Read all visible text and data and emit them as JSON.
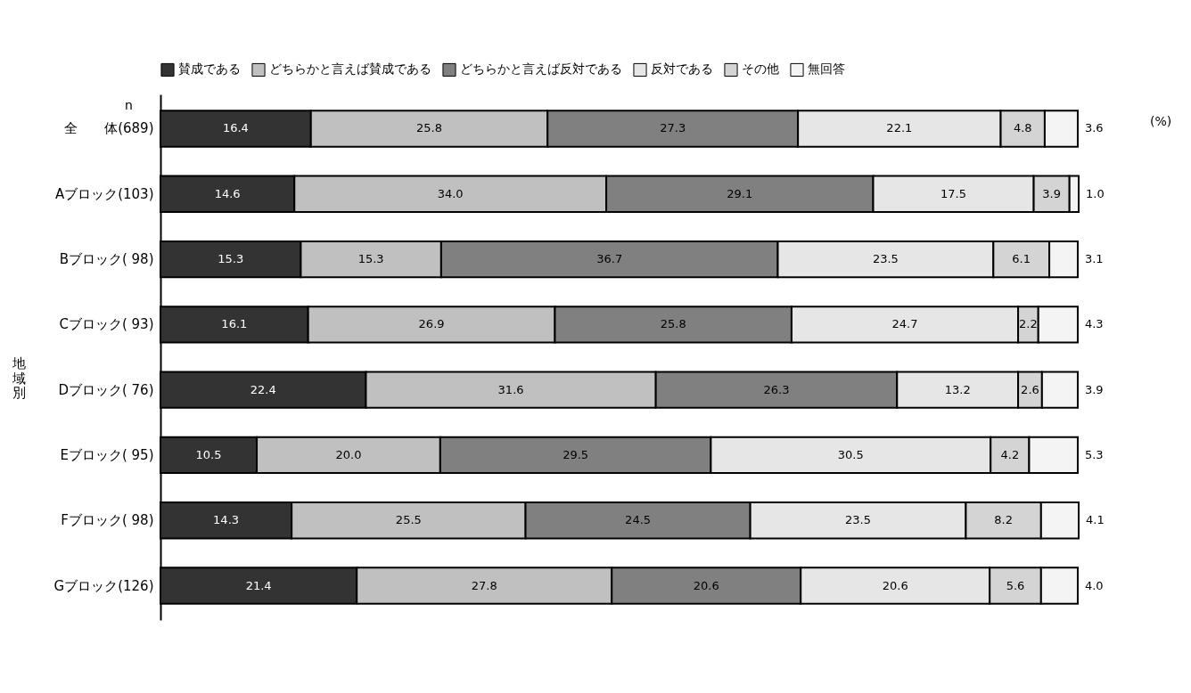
{
  "chart_data": {
    "type": "bar",
    "orientation": "horizontal",
    "stacked": true,
    "legend": "top",
    "grid": false,
    "tick_labels": "y",
    "categories": [
      "全　　体(689)",
      "Aブロック(103)",
      "Bブロック( 98)",
      "Cブロック( 93)",
      "Dブロック( 76)",
      "Eブロック( 95)",
      "Fブロック( 98)",
      "Gブロック(126)"
    ],
    "series": [
      {
        "name": "賛成である",
        "color": "#333333",
        "values": [
          16.4,
          14.6,
          15.3,
          16.1,
          22.4,
          10.5,
          14.3,
          21.4
        ],
        "value_labels": [
          "16.4",
          "14.6",
          "15.3",
          "16.1",
          "22.4",
          "10.5",
          "14.3",
          "21.4"
        ]
      },
      {
        "name": "どちらかと言えば賛成である",
        "color": "#c0c0c0",
        "values": [
          25.8,
          34.0,
          15.3,
          26.9,
          31.6,
          20.0,
          25.5,
          27.8
        ],
        "value_labels": [
          "25.8",
          "34.0",
          "15.3",
          "26.9",
          "31.6",
          "20.0",
          "25.5",
          "27.8"
        ]
      },
      {
        "name": "どちらかと言えば反対である",
        "color": "#808080",
        "values": [
          27.3,
          29.1,
          36.7,
          25.8,
          26.3,
          29.5,
          24.5,
          20.6
        ],
        "value_labels": [
          "27.3",
          "29.1",
          "36.7",
          "25.8",
          "26.3",
          "29.5",
          "24.5",
          "20.6"
        ]
      },
      {
        "name": "反対である",
        "color": "#e6e6e6",
        "values": [
          22.1,
          17.5,
          23.5,
          24.7,
          13.2,
          30.5,
          23.5,
          20.6
        ],
        "value_labels": [
          "22.1",
          "17.5",
          "23.5",
          "24.7",
          "13.2",
          "30.5",
          "23.5",
          "20.6"
        ]
      },
      {
        "name": "その他",
        "color": "#d4d4d4",
        "values": [
          4.8,
          3.9,
          6.1,
          2.2,
          2.6,
          4.2,
          8.2,
          5.6
        ],
        "value_labels": [
          "4.8",
          "3.9",
          "6.1",
          "2.2",
          "2.6",
          "4.2",
          "8.2",
          "5.6"
        ]
      },
      {
        "name": "無回答",
        "color": "#f4f4f4",
        "values": [
          3.6,
          1.0,
          3.1,
          4.3,
          3.9,
          5.3,
          4.1,
          4.0
        ],
        "value_labels": [
          "3.6",
          "1.0",
          "3.1",
          "4.3",
          "3.9",
          "5.3",
          "4.1",
          "4.0"
        ]
      }
    ],
    "annotations": [
      "n",
      "(%)",
      "地域別"
    ]
  }
}
